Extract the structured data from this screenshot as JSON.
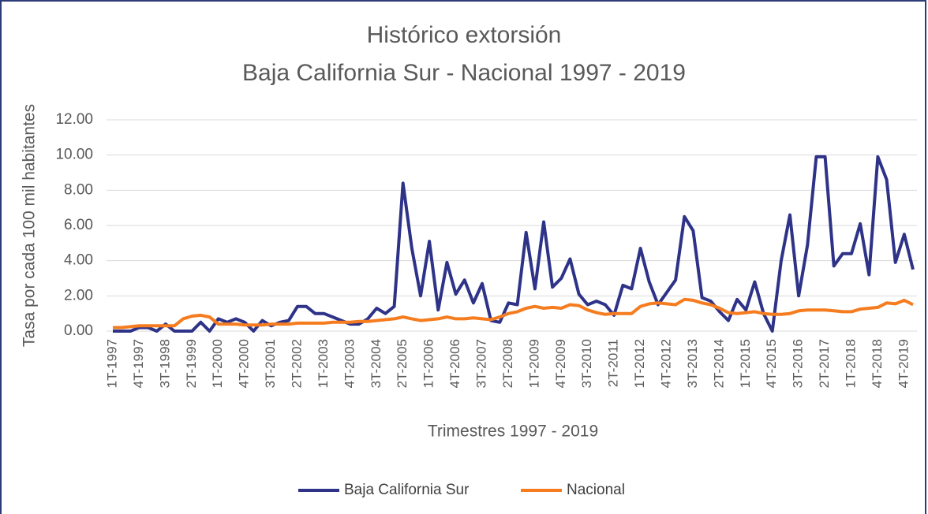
{
  "chart_data": {
    "type": "line",
    "title": "Histórico extorsión",
    "subtitle": "Baja California Sur - Nacional 1997 - 2019",
    "x_label": "Trimestres 1997 - 2019",
    "y_label": "Tasa por cada 100 mil habitantes",
    "categories": [
      "1T-1997",
      null,
      null,
      "4T-1997",
      null,
      null,
      "3T-1998",
      null,
      null,
      "2T-1999",
      null,
      null,
      "1T-2000",
      null,
      null,
      "4T-2000",
      null,
      null,
      "3T-2001",
      null,
      null,
      "2T-2002",
      null,
      null,
      "1T-2003",
      null,
      null,
      "4T-2003",
      null,
      null,
      "3T-2004",
      null,
      null,
      "2T-2005",
      null,
      null,
      "1T-2006",
      null,
      null,
      "4T-2006",
      null,
      null,
      "3T-2007",
      null,
      null,
      "2T-2008",
      null,
      null,
      "1T-2009",
      null,
      null,
      "4T-2009",
      null,
      null,
      "3T-2010",
      null,
      null,
      "2T-2011",
      null,
      null,
      "1T-2012",
      null,
      null,
      "4T-2012",
      null,
      null,
      "3T-2013",
      null,
      null,
      "2T-2014",
      null,
      null,
      "1T-2015",
      null,
      null,
      "4T-2015",
      null,
      null,
      "3T-2016",
      null,
      null,
      "2T-2017",
      null,
      null,
      "1T-2018",
      null,
      null,
      "4T-2018",
      null,
      null,
      "4T-2019",
      null
    ],
    "series": [
      {
        "name": "Baja California Sur",
        "color": "#2e3388",
        "values": [
          0.0,
          0.0,
          0.0,
          0.2,
          0.2,
          0.0,
          0.4,
          0.0,
          0.0,
          0.0,
          0.5,
          0.0,
          0.7,
          0.5,
          0.7,
          0.5,
          0.0,
          0.6,
          0.3,
          0.5,
          0.6,
          1.4,
          1.4,
          1.0,
          1.0,
          0.8,
          0.6,
          0.4,
          0.4,
          0.7,
          1.3,
          1.0,
          1.4,
          8.4,
          4.7,
          2.0,
          5.1,
          1.2,
          3.9,
          2.1,
          2.9,
          1.6,
          2.7,
          0.6,
          0.5,
          1.6,
          1.5,
          5.6,
          2.4,
          6.2,
          2.5,
          3.0,
          4.1,
          2.1,
          1.5,
          1.7,
          1.5,
          0.9,
          2.6,
          2.4,
          4.7,
          2.8,
          1.5,
          2.2,
          2.9,
          6.5,
          5.7,
          1.9,
          1.7,
          1.1,
          0.6,
          1.8,
          1.2,
          2.8,
          1.0,
          0.0,
          4.0,
          6.6,
          2.0,
          4.9,
          9.9,
          9.9,
          3.7,
          4.4,
          4.4,
          6.1,
          3.2,
          9.9,
          8.6,
          3.9,
          5.5,
          3.5
        ]
      },
      {
        "name": "Nacional",
        "color": "#f57c1f",
        "values": [
          0.2,
          0.2,
          0.25,
          0.3,
          0.3,
          0.3,
          0.3,
          0.3,
          0.7,
          0.85,
          0.9,
          0.8,
          0.4,
          0.4,
          0.4,
          0.35,
          0.35,
          0.35,
          0.4,
          0.4,
          0.4,
          0.45,
          0.45,
          0.45,
          0.45,
          0.5,
          0.5,
          0.5,
          0.55,
          0.55,
          0.6,
          0.65,
          0.7,
          0.8,
          0.7,
          0.6,
          0.65,
          0.7,
          0.8,
          0.7,
          0.7,
          0.75,
          0.7,
          0.65,
          0.8,
          1.0,
          1.1,
          1.3,
          1.4,
          1.3,
          1.35,
          1.3,
          1.5,
          1.45,
          1.2,
          1.05,
          0.95,
          1.0,
          1.0,
          1.0,
          1.4,
          1.55,
          1.6,
          1.55,
          1.5,
          1.8,
          1.75,
          1.6,
          1.5,
          1.3,
          1.05,
          1.0,
          1.05,
          1.1,
          1.0,
          0.95,
          0.95,
          1.0,
          1.15,
          1.2,
          1.2,
          1.2,
          1.15,
          1.1,
          1.1,
          1.25,
          1.3,
          1.35,
          1.6,
          1.55,
          1.75,
          1.5
        ]
      }
    ],
    "ylim": [
      0,
      12
    ],
    "yticks": [
      {
        "value": 0,
        "label": "0.00"
      },
      {
        "value": 2,
        "label": "2.00"
      },
      {
        "value": 4,
        "label": "4.00"
      },
      {
        "value": 6,
        "label": "6.00"
      },
      {
        "value": 8,
        "label": "8.00"
      },
      {
        "value": 10,
        "label": "10.00"
      },
      {
        "value": 12,
        "label": "12.00"
      }
    ],
    "grid": true,
    "legend": "bottom"
  }
}
